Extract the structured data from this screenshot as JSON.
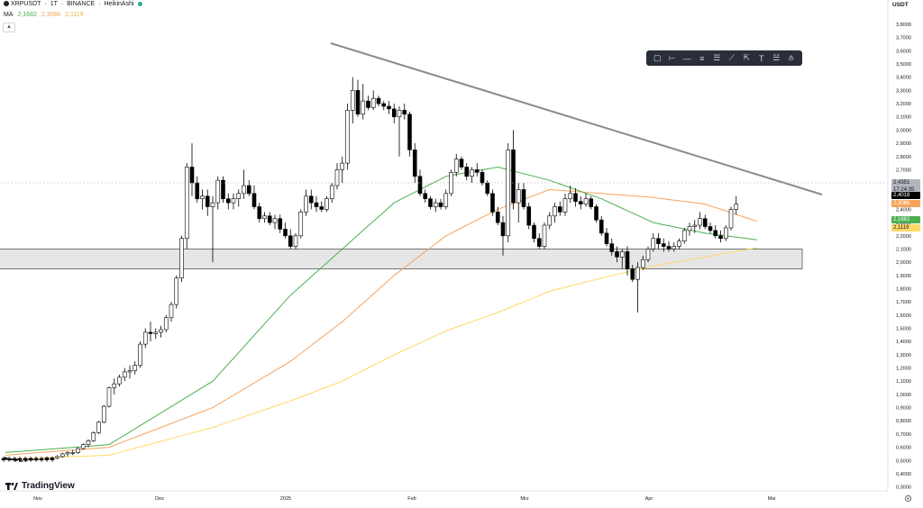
{
  "header": {
    "symbol": "XRPUSDT",
    "interval": "1T",
    "exchange": "BINANCE",
    "chart_style": "HeikinAshi",
    "separator": " · ",
    "ma_label": "MA",
    "ma_values": [
      "2,1682",
      "2,3066",
      "2,1119"
    ]
  },
  "currency": "USDT",
  "logo_text": "TradingView",
  "price_tags": {
    "last": "2,4351",
    "countdown": "17:24:35",
    "black": "2,4018",
    "orange": "2,3066",
    "green": "2,1682",
    "yellow": "2,1119"
  },
  "colors": {
    "ma_green": "#4caf50",
    "ma_orange": "#f7a35c",
    "ma_yellow": "#ffd966",
    "bull": "#ffffff",
    "bear": "#000000",
    "trendline": "#8a8a8a",
    "zone": "#e6e6e6"
  },
  "toolbar_icons": [
    "select-box-icon",
    "horizontal-ray-icon",
    "horizontal-line-icon",
    "parallel-channel-icon",
    "fib-icon",
    "trend-line-icon",
    "measure-icon",
    "text-icon",
    "multi-line-icon",
    "pitchfork-icon"
  ],
  "chart_data": {
    "type": "candlestick",
    "x_labels": [
      "Nov",
      "Dez",
      "2025",
      "Feb",
      "Mrz",
      "Apr",
      "Mai"
    ],
    "y_ticks": [
      "3,9000",
      "3,8000",
      "3,7000",
      "3,6000",
      "3,5000",
      "3,4000",
      "3,3000",
      "3,2000",
      "3,1000",
      "3,0000",
      "2,9000",
      "2,8000",
      "2,7000",
      "2,6000",
      "2,5000",
      "2,4000",
      "2,3000",
      "2,2000",
      "2,1000",
      "2,0000",
      "1,9000",
      "1,8000",
      "1,7000",
      "1,6000",
      "1,5000",
      "1,4000",
      "1,3000",
      "1,2000",
      "1,1000",
      "1,0000",
      "0,9000",
      "0,8000",
      "0,7000",
      "0,6000",
      "0,5000",
      "0,4000",
      "0,3000"
    ],
    "ylim": [
      0.27,
      3.95
    ],
    "candles": [
      [
        0.52,
        0.53,
        0.5,
        0.51
      ],
      [
        0.51,
        0.52,
        0.5,
        0.51
      ],
      [
        0.51,
        0.52,
        0.49,
        0.5
      ],
      [
        0.5,
        0.51,
        0.49,
        0.5
      ],
      [
        0.5,
        0.52,
        0.49,
        0.51
      ],
      [
        0.51,
        0.52,
        0.5,
        0.51
      ],
      [
        0.51,
        0.52,
        0.5,
        0.51
      ],
      [
        0.51,
        0.52,
        0.5,
        0.51
      ],
      [
        0.51,
        0.53,
        0.5,
        0.52
      ],
      [
        0.52,
        0.53,
        0.51,
        0.52
      ],
      [
        0.52,
        0.54,
        0.51,
        0.53
      ],
      [
        0.53,
        0.56,
        0.52,
        0.55
      ],
      [
        0.55,
        0.57,
        0.53,
        0.56
      ],
      [
        0.56,
        0.58,
        0.54,
        0.56
      ],
      [
        0.56,
        0.6,
        0.55,
        0.59
      ],
      [
        0.59,
        0.63,
        0.58,
        0.62
      ],
      [
        0.62,
        0.66,
        0.6,
        0.65
      ],
      [
        0.65,
        0.72,
        0.64,
        0.71
      ],
      [
        0.71,
        0.8,
        0.7,
        0.79
      ],
      [
        0.79,
        0.92,
        0.78,
        0.91
      ],
      [
        0.91,
        1.06,
        0.9,
        1.05
      ],
      [
        1.05,
        1.12,
        1.0,
        1.08
      ],
      [
        1.08,
        1.15,
        1.06,
        1.13
      ],
      [
        1.13,
        1.2,
        1.1,
        1.17
      ],
      [
        1.17,
        1.22,
        1.12,
        1.18
      ],
      [
        1.18,
        1.25,
        1.15,
        1.22
      ],
      [
        1.22,
        1.4,
        1.2,
        1.38
      ],
      [
        1.38,
        1.5,
        1.35,
        1.47
      ],
      [
        1.47,
        1.55,
        1.4,
        1.46
      ],
      [
        1.46,
        1.5,
        1.42,
        1.47
      ],
      [
        1.47,
        1.52,
        1.43,
        1.49
      ],
      [
        1.49,
        1.6,
        1.47,
        1.58
      ],
      [
        1.58,
        1.7,
        1.55,
        1.68
      ],
      [
        1.68,
        1.9,
        1.65,
        1.88
      ],
      [
        1.88,
        2.2,
        1.85,
        2.18
      ],
      [
        2.18,
        2.75,
        2.1,
        2.72
      ],
      [
        2.72,
        2.9,
        2.5,
        2.6
      ],
      [
        2.6,
        2.65,
        2.45,
        2.48
      ],
      [
        2.48,
        2.55,
        2.4,
        2.5
      ],
      [
        2.5,
        2.55,
        2.35,
        2.42
      ],
      [
        2.42,
        2.5,
        2.0,
        2.45
      ],
      [
        2.45,
        2.65,
        2.4,
        2.62
      ],
      [
        2.62,
        2.65,
        2.45,
        2.48
      ],
      [
        2.48,
        2.52,
        2.4,
        2.45
      ],
      [
        2.45,
        2.52,
        2.4,
        2.48
      ],
      [
        2.48,
        2.55,
        2.42,
        2.52
      ],
      [
        2.52,
        2.7,
        2.48,
        2.58
      ],
      [
        2.58,
        2.62,
        2.5,
        2.52
      ],
      [
        2.52,
        2.58,
        2.4,
        2.42
      ],
      [
        2.42,
        2.45,
        2.3,
        2.33
      ],
      [
        2.33,
        2.38,
        2.3,
        2.35
      ],
      [
        2.35,
        2.38,
        2.28,
        2.3
      ],
      [
        2.3,
        2.36,
        2.25,
        2.33
      ],
      [
        2.33,
        2.36,
        2.22,
        2.25
      ],
      [
        2.25,
        2.3,
        2.18,
        2.2
      ],
      [
        2.2,
        2.25,
        2.1,
        2.12
      ],
      [
        2.12,
        2.22,
        2.1,
        2.2
      ],
      [
        2.2,
        2.4,
        2.18,
        2.38
      ],
      [
        2.38,
        2.55,
        2.35,
        2.5
      ],
      [
        2.5,
        2.55,
        2.4,
        2.45
      ],
      [
        2.45,
        2.5,
        2.38,
        2.42
      ],
      [
        2.42,
        2.46,
        2.38,
        2.4
      ],
      [
        2.4,
        2.5,
        2.38,
        2.48
      ],
      [
        2.48,
        2.6,
        2.45,
        2.58
      ],
      [
        2.58,
        2.75,
        2.55,
        2.7
      ],
      [
        2.7,
        2.8,
        2.6,
        2.75
      ],
      [
        2.75,
        3.2,
        2.7,
        3.15
      ],
      [
        3.15,
        3.4,
        3.05,
        3.3
      ],
      [
        3.3,
        3.38,
        3.1,
        3.12
      ],
      [
        3.12,
        3.35,
        3.08,
        3.22
      ],
      [
        3.22,
        3.26,
        3.15,
        3.17
      ],
      [
        3.17,
        3.3,
        3.15,
        3.24
      ],
      [
        3.24,
        3.26,
        3.18,
        3.2
      ],
      [
        3.2,
        3.22,
        3.15,
        3.18
      ],
      [
        3.18,
        3.22,
        3.12,
        3.16
      ],
      [
        3.16,
        3.2,
        3.05,
        3.1
      ],
      [
        3.1,
        3.18,
        2.8,
        3.15
      ],
      [
        3.15,
        3.2,
        3.08,
        3.12
      ],
      [
        3.12,
        3.14,
        2.8,
        2.85
      ],
      [
        2.85,
        2.9,
        2.6,
        2.65
      ],
      [
        2.65,
        2.7,
        2.5,
        2.52
      ],
      [
        2.52,
        2.55,
        2.45,
        2.48
      ],
      [
        2.48,
        2.5,
        2.4,
        2.42
      ],
      [
        2.42,
        2.48,
        2.38,
        2.45
      ],
      [
        2.45,
        2.48,
        2.4,
        2.42
      ],
      [
        2.42,
        2.55,
        2.4,
        2.52
      ],
      [
        2.52,
        2.7,
        2.5,
        2.68
      ],
      [
        2.68,
        2.82,
        2.65,
        2.78
      ],
      [
        2.78,
        2.8,
        2.7,
        2.72
      ],
      [
        2.72,
        2.75,
        2.62,
        2.65
      ],
      [
        2.65,
        2.72,
        2.6,
        2.7
      ],
      [
        2.7,
        2.75,
        2.65,
        2.68
      ],
      [
        2.68,
        2.7,
        2.58,
        2.6
      ],
      [
        2.6,
        2.62,
        2.5,
        2.52
      ],
      [
        2.52,
        2.55,
        2.35,
        2.38
      ],
      [
        2.38,
        2.42,
        2.28,
        2.3
      ],
      [
        2.3,
        2.35,
        2.05,
        2.2
      ],
      [
        2.2,
        2.9,
        2.15,
        2.85
      ],
      [
        2.85,
        3.0,
        2.4,
        2.45
      ],
      [
        2.45,
        2.6,
        2.3,
        2.55
      ],
      [
        2.55,
        2.6,
        2.4,
        2.42
      ],
      [
        2.42,
        2.45,
        2.25,
        2.28
      ],
      [
        2.28,
        2.3,
        2.15,
        2.18
      ],
      [
        2.18,
        2.22,
        2.1,
        2.12
      ],
      [
        2.12,
        2.3,
        2.1,
        2.28
      ],
      [
        2.28,
        2.38,
        2.25,
        2.35
      ],
      [
        2.35,
        2.45,
        2.3,
        2.42
      ],
      [
        2.42,
        2.46,
        2.35,
        2.38
      ],
      [
        2.38,
        2.52,
        2.35,
        2.48
      ],
      [
        2.48,
        2.58,
        2.45,
        2.52
      ],
      [
        2.52,
        2.56,
        2.42,
        2.46
      ],
      [
        2.46,
        2.5,
        2.4,
        2.44
      ],
      [
        2.44,
        2.52,
        2.42,
        2.48
      ],
      [
        2.48,
        2.5,
        2.4,
        2.42
      ],
      [
        2.42,
        2.44,
        2.3,
        2.32
      ],
      [
        2.32,
        2.35,
        2.2,
        2.22
      ],
      [
        2.22,
        2.26,
        2.12,
        2.14
      ],
      [
        2.14,
        2.18,
        2.05,
        2.08
      ],
      [
        2.08,
        2.12,
        2.0,
        2.04
      ],
      [
        2.04,
        2.1,
        1.95,
        2.08
      ],
      [
        2.08,
        2.12,
        1.9,
        1.95
      ],
      [
        1.95,
        1.98,
        1.85,
        1.87
      ],
      [
        1.87,
        2.0,
        1.62,
        1.96
      ],
      [
        1.96,
        2.05,
        1.94,
        2.02
      ],
      [
        2.02,
        2.12,
        2.0,
        2.1
      ],
      [
        2.1,
        2.22,
        2.08,
        2.18
      ],
      [
        2.18,
        2.22,
        2.1,
        2.14
      ],
      [
        2.14,
        2.18,
        2.08,
        2.12
      ],
      [
        2.12,
        2.16,
        2.08,
        2.1
      ],
      [
        2.1,
        2.15,
        2.08,
        2.12
      ],
      [
        2.12,
        2.18,
        2.1,
        2.16
      ],
      [
        2.16,
        2.26,
        2.14,
        2.24
      ],
      [
        2.24,
        2.3,
        2.2,
        2.27
      ],
      [
        2.27,
        2.32,
        2.22,
        2.28
      ],
      [
        2.28,
        2.38,
        2.25,
        2.33
      ],
      [
        2.33,
        2.36,
        2.25,
        2.27
      ],
      [
        2.27,
        2.3,
        2.22,
        2.24
      ],
      [
        2.24,
        2.28,
        2.18,
        2.2
      ],
      [
        2.2,
        2.24,
        2.15,
        2.18
      ],
      [
        2.18,
        2.28,
        2.16,
        2.26
      ],
      [
        2.26,
        2.42,
        2.24,
        2.4
      ],
      [
        2.4,
        2.5,
        2.36,
        2.44
      ]
    ],
    "ma_green": [
      [
        0,
        0.56
      ],
      [
        20,
        0.62
      ],
      [
        40,
        1.1
      ],
      [
        55,
        1.75
      ],
      [
        65,
        2.1
      ],
      [
        75,
        2.45
      ],
      [
        85,
        2.65
      ],
      [
        95,
        2.72
      ],
      [
        105,
        2.62
      ],
      [
        115,
        2.48
      ],
      [
        125,
        2.3
      ],
      [
        135,
        2.22
      ],
      [
        145,
        2.17
      ]
    ],
    "ma_orange": [
      [
        0,
        0.54
      ],
      [
        20,
        0.6
      ],
      [
        40,
        0.9
      ],
      [
        55,
        1.25
      ],
      [
        65,
        1.55
      ],
      [
        75,
        1.9
      ],
      [
        85,
        2.2
      ],
      [
        95,
        2.4
      ],
      [
        105,
        2.55
      ],
      [
        115,
        2.52
      ],
      [
        125,
        2.49
      ],
      [
        135,
        2.44
      ],
      [
        145,
        2.31
      ]
    ],
    "ma_yellow": [
      [
        0,
        0.51
      ],
      [
        20,
        0.54
      ],
      [
        40,
        0.75
      ],
      [
        55,
        0.95
      ],
      [
        65,
        1.1
      ],
      [
        75,
        1.3
      ],
      [
        85,
        1.48
      ],
      [
        95,
        1.62
      ],
      [
        105,
        1.78
      ],
      [
        115,
        1.88
      ],
      [
        125,
        1.97
      ],
      [
        135,
        2.04
      ],
      [
        145,
        2.11
      ]
    ],
    "trendline": [
      [
        -4,
        3.65
      ],
      [
        148,
        2.45
      ]
    ],
    "zone": {
      "x": [
        -28,
        144
      ],
      "y": [
        1.95,
        2.1
      ]
    }
  }
}
